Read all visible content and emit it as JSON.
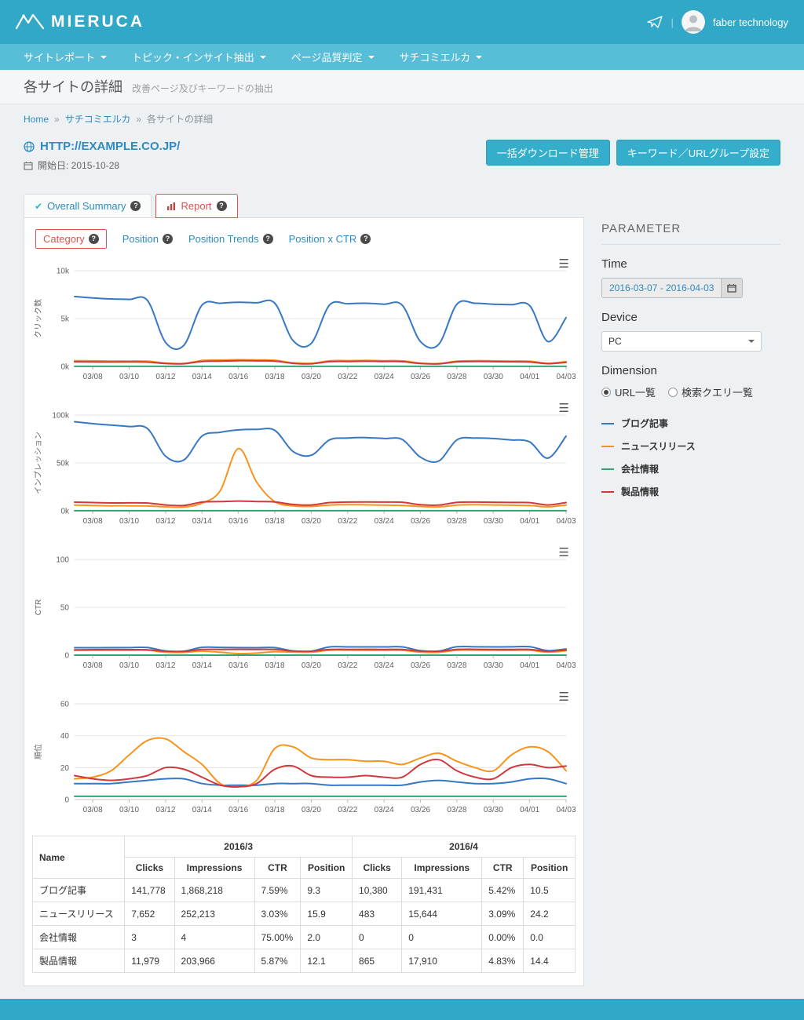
{
  "icons": {
    "menu": "☰",
    "check": "✔",
    "help": "?",
    "breadcrumb_sep": "»",
    "account_sep": "|"
  },
  "header": {
    "brand": "MIERUCA",
    "account": "faber technology"
  },
  "nav": {
    "items": [
      {
        "label": "サイトレポート"
      },
      {
        "label": "トピック・インサイト抽出"
      },
      {
        "label": "ページ品質判定"
      },
      {
        "label": "サチコミエルカ"
      }
    ]
  },
  "page": {
    "title": "各サイトの詳細",
    "subtitle": "改善ページ及びキーワードの抽出"
  },
  "breadcrumb": {
    "home": "Home",
    "section": "サチコミエルカ",
    "current": "各サイトの詳細"
  },
  "site": {
    "url": "HTTP://EXAMPLE.CO.JP/",
    "start": "開始日: 2015-10-28"
  },
  "buttons": {
    "bulk_download": "一括ダウンロード管理",
    "keyword_group": "キーワード／URLグループ設定"
  },
  "tabs": {
    "overall": "Overall Summary",
    "report": "Report"
  },
  "subtabs": [
    {
      "label": "Category",
      "active": true
    },
    {
      "label": "Position",
      "active": false
    },
    {
      "label": "Position Trends",
      "active": false
    },
    {
      "label": "Position x CTR",
      "active": false
    }
  ],
  "parameter": {
    "heading": "PARAMETER",
    "time_label": "Time",
    "time_value": "2016-03-07 - 2016-04-03",
    "device_label": "Device",
    "device_value": "PC",
    "dimension_label": "Dimension",
    "dimension_options": [
      {
        "label": "URL一覧",
        "selected": true
      },
      {
        "label": "検索クエリ一覧",
        "selected": false
      }
    ]
  },
  "legend": [
    {
      "label": "ブログ記事",
      "color": "#3778c2"
    },
    {
      "label": "ニュースリリース",
      "color": "#f7941e"
    },
    {
      "label": "会社情報",
      "color": "#36a273"
    },
    {
      "label": "製品情報",
      "color": "#d0393b"
    }
  ],
  "chart_data": [
    {
      "type": "line",
      "ylabel": "クリック数",
      "ylim": [
        0,
        10000
      ],
      "yticks": [
        {
          "v": 0,
          "label": "0k"
        },
        {
          "v": 5000,
          "label": "5k"
        },
        {
          "v": 10000,
          "label": "10k"
        }
      ],
      "xtick_start": 1,
      "xtick_step": 2,
      "x": [
        "03/07",
        "03/08",
        "03/09",
        "03/10",
        "03/11",
        "03/12",
        "03/13",
        "03/14",
        "03/15",
        "03/16",
        "03/17",
        "03/18",
        "03/19",
        "03/20",
        "03/21",
        "03/22",
        "03/23",
        "03/24",
        "03/25",
        "03/26",
        "03/27",
        "03/28",
        "03/29",
        "03/30",
        "03/31",
        "04/01",
        "04/02",
        "04/03"
      ],
      "series": [
        {
          "name": "ブログ記事",
          "color": "#3778c2",
          "values": [
            7300,
            7150,
            7050,
            7000,
            6900,
            2500,
            2200,
            6400,
            6600,
            6700,
            6650,
            6600,
            2700,
            2400,
            6400,
            6550,
            6600,
            6500,
            6400,
            2600,
            2300,
            6500,
            6600,
            6500,
            6450,
            6350,
            2600,
            5100
          ]
        },
        {
          "name": "ニュースリリース",
          "color": "#f7941e",
          "values": [
            600,
            580,
            560,
            560,
            540,
            350,
            300,
            620,
            660,
            700,
            680,
            650,
            380,
            320,
            580,
            610,
            620,
            600,
            580,
            350,
            300,
            560,
            600,
            580,
            560,
            540,
            330,
            500
          ]
        },
        {
          "name": "会社情報",
          "color": "#36a273",
          "values": [
            5,
            5,
            5,
            5,
            5,
            5,
            5,
            5,
            5,
            5,
            5,
            5,
            5,
            5,
            5,
            5,
            5,
            5,
            5,
            5,
            5,
            5,
            5,
            5,
            5,
            5,
            5,
            5
          ]
        },
        {
          "name": "製品情報",
          "color": "#d0393b",
          "values": [
            480,
            470,
            460,
            465,
            450,
            300,
            280,
            520,
            560,
            600,
            580,
            560,
            320,
            280,
            500,
            520,
            540,
            520,
            500,
            300,
            270,
            480,
            520,
            500,
            480,
            460,
            290,
            430
          ]
        }
      ]
    },
    {
      "type": "line",
      "ylabel": "インプレッション",
      "ylim": [
        0,
        100000
      ],
      "yticks": [
        {
          "v": 0,
          "label": "0k"
        },
        {
          "v": 50000,
          "label": "50k"
        },
        {
          "v": 100000,
          "label": "100k"
        }
      ],
      "xtick_start": 1,
      "xtick_step": 2,
      "x": [
        "03/07",
        "03/08",
        "03/09",
        "03/10",
        "03/11",
        "03/12",
        "03/13",
        "03/14",
        "03/15",
        "03/16",
        "03/17",
        "03/18",
        "03/19",
        "03/20",
        "03/21",
        "03/22",
        "03/23",
        "03/24",
        "03/25",
        "03/26",
        "03/27",
        "03/28",
        "03/29",
        "03/30",
        "03/31",
        "04/01",
        "04/02",
        "04/03"
      ],
      "series": [
        {
          "name": "ブログ記事",
          "color": "#3778c2",
          "values": [
            93000,
            91000,
            89500,
            88000,
            86000,
            57000,
            53000,
            78000,
            82000,
            84500,
            85000,
            84000,
            62000,
            58000,
            74000,
            76000,
            76500,
            75500,
            74500,
            56000,
            52000,
            74000,
            76000,
            75500,
            74000,
            72000,
            55000,
            78000
          ]
        },
        {
          "name": "ニュースリリース",
          "color": "#f7941e",
          "values": [
            6000,
            5600,
            5200,
            5200,
            5000,
            4200,
            3900,
            8000,
            21000,
            65000,
            30000,
            9500,
            5200,
            4600,
            6000,
            6400,
            6200,
            5900,
            5600,
            4500,
            4100,
            6000,
            6400,
            6100,
            5800,
            5500,
            4200,
            6000
          ]
        },
        {
          "name": "会社情報",
          "color": "#36a273",
          "values": [
            100,
            100,
            100,
            100,
            100,
            100,
            100,
            100,
            100,
            100,
            100,
            100,
            100,
            100,
            100,
            100,
            100,
            100,
            100,
            100,
            100,
            100,
            100,
            100,
            100,
            100,
            100,
            100
          ]
        },
        {
          "name": "製品情報",
          "color": "#d0393b",
          "values": [
            9000,
            8600,
            8200,
            8300,
            8100,
            6100,
            5600,
            9100,
            9600,
            10200,
            9700,
            9200,
            6600,
            6100,
            8600,
            9100,
            9300,
            9100,
            8900,
            6300,
            5900,
            8800,
            9100,
            8900,
            8700,
            8500,
            6100,
            8600
          ]
        }
      ]
    },
    {
      "type": "line",
      "ylabel": "CTR",
      "ylim": [
        0,
        100
      ],
      "yticks": [
        {
          "v": 0,
          "label": "0"
        },
        {
          "v": 50,
          "label": "50"
        },
        {
          "v": 100,
          "label": "100"
        }
      ],
      "xtick_start": 1,
      "xtick_step": 2,
      "x": [
        "03/07",
        "03/08",
        "03/09",
        "03/10",
        "03/11",
        "03/12",
        "03/13",
        "03/14",
        "03/15",
        "03/16",
        "03/17",
        "03/18",
        "03/19",
        "03/20",
        "03/21",
        "03/22",
        "03/23",
        "03/24",
        "03/25",
        "03/26",
        "03/27",
        "03/28",
        "03/29",
        "03/30",
        "03/31",
        "04/01",
        "04/02",
        "04/03"
      ],
      "series": [
        {
          "name": "ブログ記事",
          "color": "#3778c2",
          "values": [
            7.8,
            7.8,
            7.9,
            7.9,
            8.0,
            4.4,
            4.2,
            8.2,
            8.1,
            7.9,
            7.8,
            7.9,
            4.4,
            4.1,
            8.6,
            8.6,
            8.6,
            8.6,
            8.6,
            4.7,
            4.3,
            8.8,
            8.7,
            8.6,
            8.7,
            8.8,
            4.7,
            6.5
          ]
        },
        {
          "name": "ニュースリリース",
          "color": "#f7941e",
          "values": [
            5.0,
            5.1,
            5.2,
            5.1,
            5.2,
            3.1,
            2.9,
            4.2,
            3.0,
            1.6,
            2.1,
            3.6,
            3.2,
            3.0,
            5.2,
            5.3,
            5.2,
            5.1,
            5.0,
            3.1,
            2.9,
            5.2,
            5.3,
            5.1,
            5.0,
            5.1,
            3.1,
            4.6
          ]
        },
        {
          "name": "会社情報",
          "color": "#36a273",
          "values": [
            0,
            0,
            0,
            0,
            0,
            0,
            0,
            0,
            0,
            0,
            0,
            0,
            0,
            0,
            0,
            0,
            0,
            0,
            0,
            0,
            0,
            0,
            0,
            0,
            0,
            0,
            0,
            0
          ]
        },
        {
          "name": "製品情報",
          "color": "#d0393b",
          "values": [
            5.6,
            5.7,
            5.8,
            5.7,
            5.6,
            4.1,
            3.9,
            5.9,
            6.0,
            6.1,
            6.0,
            5.9,
            4.3,
            4.1,
            5.9,
            6.0,
            6.1,
            6.0,
            5.9,
            4.2,
            4.0,
            6.0,
            6.1,
            6.0,
            5.9,
            6.0,
            4.1,
            5.3
          ]
        }
      ]
    },
    {
      "type": "line",
      "ylabel": "順位",
      "ylim": [
        0,
        60
      ],
      "yticks": [
        {
          "v": 0,
          "label": "0"
        },
        {
          "v": 20,
          "label": "20"
        },
        {
          "v": 40,
          "label": "40"
        },
        {
          "v": 60,
          "label": "60"
        }
      ],
      "xtick_start": 1,
      "xtick_step": 2,
      "x": [
        "03/07",
        "03/08",
        "03/09",
        "03/10",
        "03/11",
        "03/12",
        "03/13",
        "03/14",
        "03/15",
        "03/16",
        "03/17",
        "03/18",
        "03/19",
        "03/20",
        "03/21",
        "03/22",
        "03/23",
        "03/24",
        "03/25",
        "03/26",
        "03/27",
        "03/28",
        "03/29",
        "03/30",
        "03/31",
        "04/01",
        "04/02",
        "04/03"
      ],
      "series": [
        {
          "name": "ブログ記事",
          "color": "#3778c2",
          "values": [
            10,
            10,
            10,
            11,
            12,
            13,
            13,
            10,
            9,
            9,
            9,
            10,
            10,
            10,
            9,
            9,
            9,
            9,
            9,
            11,
            12,
            11,
            10,
            10,
            11,
            13,
            13,
            10
          ]
        },
        {
          "name": "ニュースリリース",
          "color": "#f7941e",
          "values": [
            13,
            14,
            18,
            28,
            37,
            38,
            30,
            22,
            10,
            8,
            12,
            32,
            33,
            26,
            25,
            25,
            24,
            24,
            22,
            26,
            29,
            24,
            20,
            18,
            28,
            33,
            30,
            18
          ]
        },
        {
          "name": "会社情報",
          "color": "#36a273",
          "values": [
            2,
            2,
            2,
            2,
            2,
            2,
            2,
            2,
            2,
            2,
            2,
            2,
            2,
            2,
            2,
            2,
            2,
            2,
            2,
            2,
            2,
            2,
            2,
            2,
            2,
            2,
            2,
            2
          ]
        },
        {
          "name": "製品情報",
          "color": "#d0393b",
          "values": [
            15,
            13,
            12,
            13,
            15,
            20,
            19,
            14,
            9,
            8,
            10,
            19,
            21,
            15,
            14,
            14,
            15,
            14,
            14,
            22,
            25,
            18,
            14,
            13,
            20,
            22,
            20,
            21
          ]
        }
      ]
    }
  ],
  "table": {
    "name_header": "Name",
    "month_headers": [
      "2016/3",
      "2016/4"
    ],
    "metric_headers": [
      "Clicks",
      "Impressions",
      "CTR",
      "Position"
    ],
    "rows": [
      {
        "name": "ブログ記事",
        "values": [
          "141,778",
          "1,868,218",
          "7.59%",
          "9.3",
          "10,380",
          "191,431",
          "5.42%",
          "10.5"
        ]
      },
      {
        "name": "ニュースリリース",
        "values": [
          "7,652",
          "252,213",
          "3.03%",
          "15.9",
          "483",
          "15,644",
          "3.09%",
          "24.2"
        ]
      },
      {
        "name": "会社情報",
        "values": [
          "3",
          "4",
          "75.00%",
          "2.0",
          "0",
          "0",
          "0.00%",
          "0.0"
        ]
      },
      {
        "name": "製品情報",
        "values": [
          "11,979",
          "203,966",
          "5.87%",
          "12.1",
          "865",
          "17,910",
          "4.83%",
          "14.4"
        ]
      }
    ]
  }
}
